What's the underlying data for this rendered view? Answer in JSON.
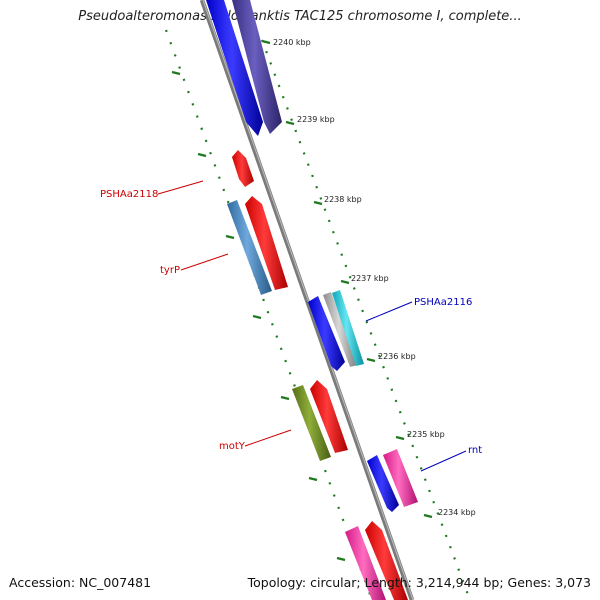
{
  "title": "Pseudoalteromonas haloplanktis TAC125 chromosome I, complete...",
  "footer": {
    "accession": "Accession: NC_007481",
    "summary": "Topology: circular; Length: 3,214,944 bp; Genes: 3,073"
  },
  "scale_labels": [
    "2240 kbp",
    "2239 kbp",
    "2238 kbp",
    "2237 kbp",
    "2236 kbp",
    "2235 kbp",
    "2234 kbp"
  ],
  "gene_labels": [
    {
      "text": "PSHAa2118",
      "color": "#cc0000"
    },
    {
      "text": "tyrP",
      "color": "#cc0000"
    },
    {
      "text": "motY",
      "color": "#cc0000"
    },
    {
      "text": "PSHAa2116",
      "color": "#0000bb"
    },
    {
      "text": "rnt",
      "color": "#0000bb"
    }
  ],
  "colors": {
    "backbone": "#8a8a8a",
    "tick": "#1f7a1f",
    "red": "#ee0000",
    "blue": "#0000ee",
    "purple": "#4a3f99",
    "steelblue": "#4a86c0",
    "cyan": "#22c8d8",
    "olive": "#6b8a24",
    "magenta": "#ee2a9a",
    "grey": "#a8a8a8"
  }
}
